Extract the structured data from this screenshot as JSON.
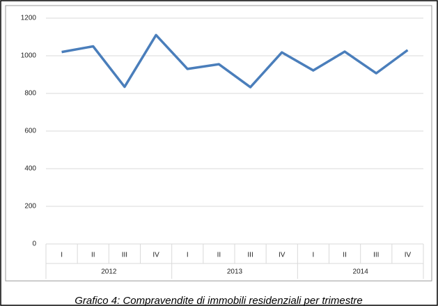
{
  "chart_data": {
    "type": "line",
    "categories": [
      "I",
      "II",
      "III",
      "IV",
      "I",
      "II",
      "III",
      "IV",
      "I",
      "II",
      "III",
      "IV"
    ],
    "category_groups": [
      "2012",
      "2013",
      "2014"
    ],
    "values": [
      1020,
      1050,
      835,
      1110,
      930,
      955,
      833,
      1018,
      922,
      1022,
      907,
      1030
    ],
    "color": "#4a7ebb",
    "ylim": [
      0,
      1200
    ],
    "yticks": [
      0,
      200,
      400,
      600,
      800,
      1000,
      1200
    ],
    "grid": true,
    "caption": "Grafico 4: Compravendite di immobili residenziali per trimestre"
  }
}
